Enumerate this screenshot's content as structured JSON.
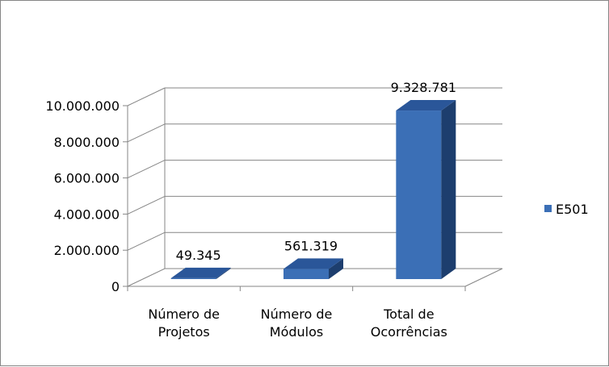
{
  "chart_data": {
    "type": "bar",
    "style": "3d-column",
    "categories": [
      "Número de\nProjetos",
      "Número de\nMódulos",
      "Total de\nOcorrências"
    ],
    "series": [
      {
        "name": "E501",
        "values": [
          49345,
          561319,
          9328781
        ],
        "color": "#3B6FB6"
      }
    ],
    "data_labels": [
      "49.345",
      "561.319",
      "9.328.781"
    ],
    "y_ticks": [
      "0",
      "2.000.000",
      "4.000.000",
      "6.000.000",
      "8.000.000",
      "10.000.000"
    ],
    "ylim": [
      0,
      10000000
    ],
    "grid": true,
    "legend_position": "right"
  }
}
